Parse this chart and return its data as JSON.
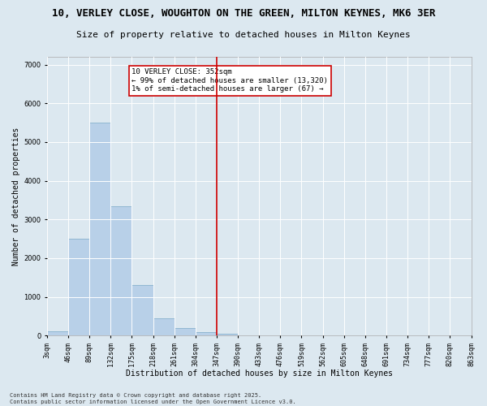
{
  "title": "10, VERLEY CLOSE, WOUGHTON ON THE GREEN, MILTON KEYNES, MK6 3ER",
  "subtitle": "Size of property relative to detached houses in Milton Keynes",
  "xlabel": "Distribution of detached houses by size in Milton Keynes",
  "ylabel": "Number of detached properties",
  "bar_color": "#b8d0e8",
  "bar_edge_color": "#7aaac8",
  "background_color": "#dce8f0",
  "grid_color": "#ffffff",
  "vline_color": "#cc0000",
  "annotation_text": "10 VERLEY CLOSE: 352sqm\n← 99% of detached houses are smaller (13,320)\n1% of semi-detached houses are larger (67) →",
  "annotation_box_color": "#ffffff",
  "annotation_box_edge": "#cc0000",
  "bins": [
    3,
    46,
    89,
    132,
    175,
    218,
    261,
    304,
    347,
    390,
    433,
    476,
    519,
    562,
    605,
    648,
    691,
    734,
    777,
    820,
    863
  ],
  "values": [
    100,
    2500,
    5500,
    3350,
    1300,
    450,
    200,
    80,
    40,
    0,
    0,
    0,
    0,
    0,
    0,
    0,
    0,
    0,
    0,
    0
  ],
  "vline_x_bin_index": 8,
  "ylim": [
    0,
    7200
  ],
  "yticks": [
    0,
    1000,
    2000,
    3000,
    4000,
    5000,
    6000,
    7000
  ],
  "footer": "Contains HM Land Registry data © Crown copyright and database right 2025.\nContains public sector information licensed under the Open Government Licence v3.0.",
  "title_fontsize": 9,
  "subtitle_fontsize": 8,
  "axis_label_fontsize": 7,
  "tick_fontsize": 6,
  "annotation_fontsize": 6.5,
  "footer_fontsize": 5
}
